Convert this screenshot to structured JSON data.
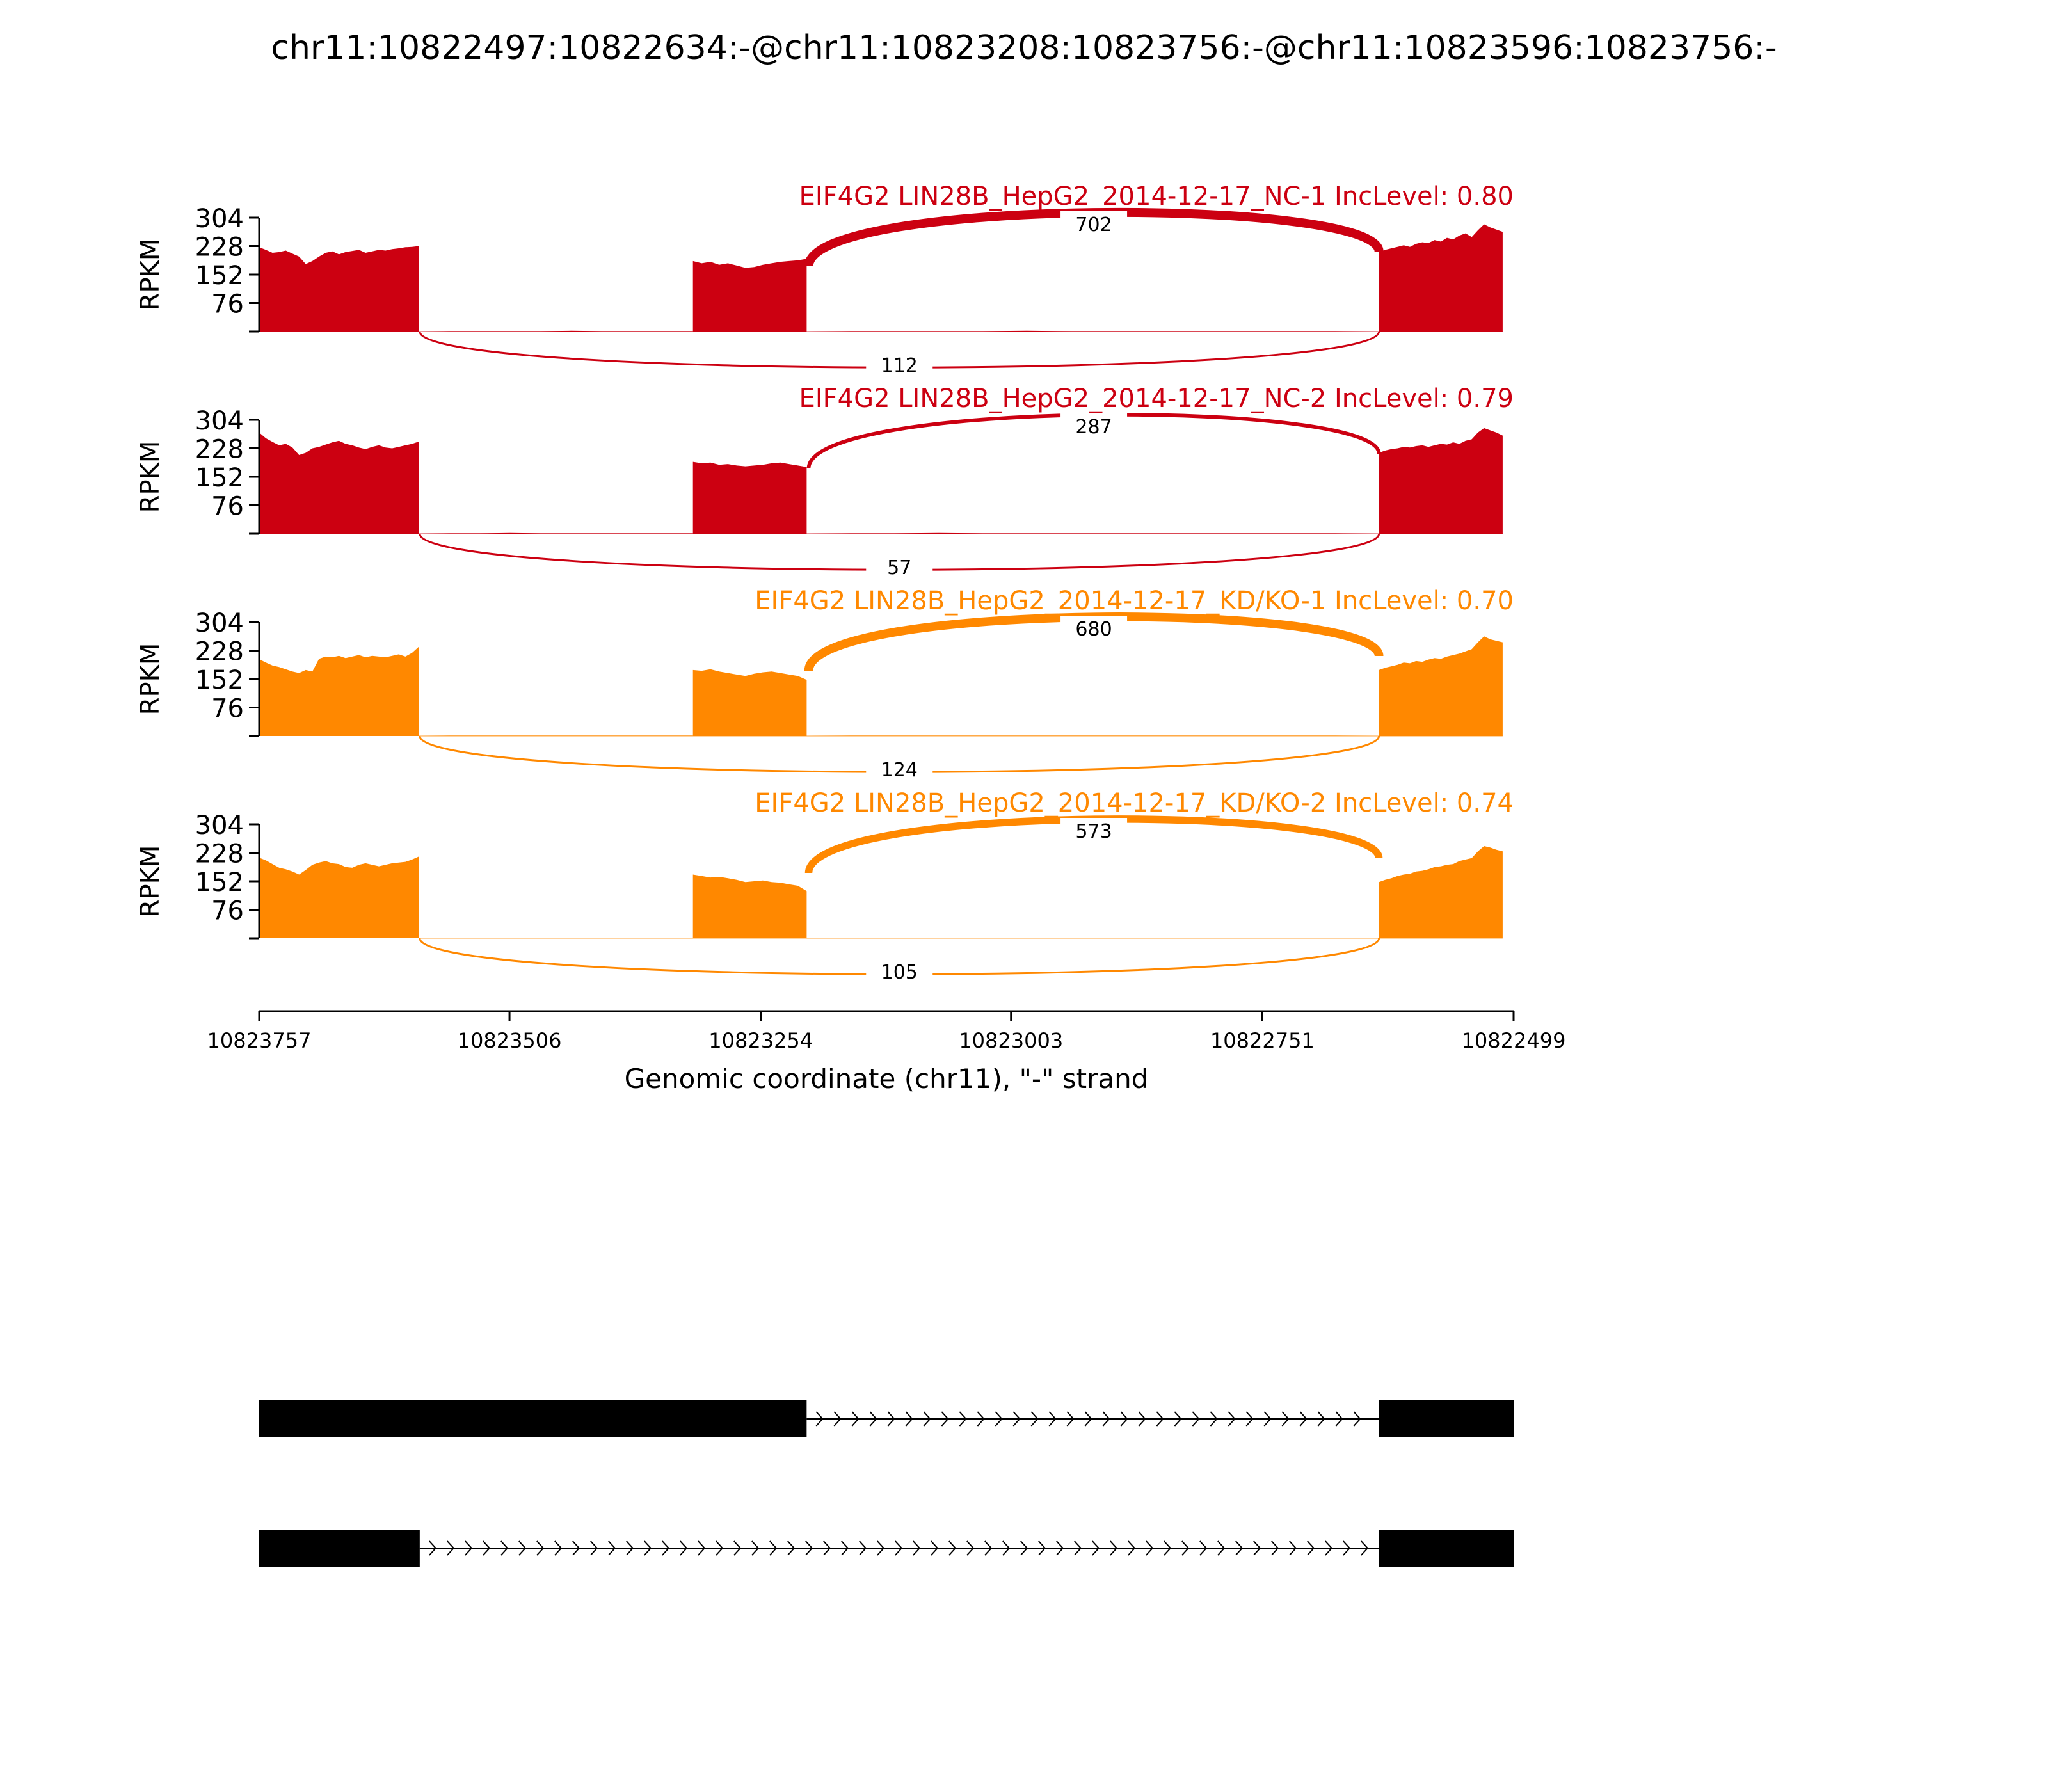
{
  "title": "chr11:10822497:10822634:-@chr11:10823208:10823756:-@chr11:10823596:10823756:-",
  "colors": {
    "nc": "#cc0011",
    "kd": "#ff8800",
    "axis": "#000000",
    "gene": "#000000"
  },
  "chart_data": {
    "type": "area",
    "subtype": "sashimi",
    "title": "chr11:10822497:10822634:-@chr11:10823208:10823756:-@chr11:10823596:10823756:-",
    "xlabel": "Genomic coordinate (chr11), \"-\" strand",
    "ylabel": "RPKM",
    "xlim": [
      10823757,
      10822499
    ],
    "x_reversed": true,
    "x_ticks": [
      "10823757",
      "10823506",
      "10823254",
      "10823003",
      "10822751",
      "10822499"
    ],
    "y_ticks": [
      "304",
      "228",
      "152",
      "76"
    ],
    "ylim": [
      0,
      304
    ],
    "tracks": [
      {
        "name": "EIF4G2 LIN28B_HepG2_2014-12-17_NC-1 IncLevel: 0.80",
        "color": "#cc0011",
        "junctions": [
          {
            "from": 10823206,
            "to": 10822634,
            "count": "702",
            "side": "above"
          },
          {
            "from": 10823596,
            "to": 10822634,
            "count": "112",
            "side": "below"
          }
        ],
        "coverage": [
          {
            "start": 10823757,
            "end": 10823597,
            "values": [
              225,
              218,
              210,
              212,
              216,
              208,
              200,
              180,
              188,
              200,
              210,
              214,
              206,
              212,
              215,
              218,
              210,
              214,
              218,
              216,
              220,
              222,
              225,
              226,
              228
            ]
          },
          {
            "start": 10823597,
            "end": 10823322,
            "values": [
              0,
              1,
              1,
              1,
              1,
              2,
              1,
              1,
              1,
              1
            ]
          },
          {
            "start": 10823322,
            "end": 10823208,
            "values": [
              188,
              182,
              186,
              178,
              182,
              176,
              170,
              172,
              178,
              182,
              186,
              188,
              190,
              194
            ]
          },
          {
            "start": 10823208,
            "end": 10822634,
            "values": [
              0,
              1,
              1,
              1,
              1,
              2,
              1,
              1,
              1,
              1,
              1,
              1,
              1,
              0
            ]
          },
          {
            "start": 10822634,
            "end": 10822510,
            "values": [
              212,
              218,
              222,
              226,
              230,
              226,
              234,
              238,
              236,
              244,
              240,
              250,
              246,
              256,
              262,
              252,
              270,
              286,
              278,
              272,
              266
            ]
          }
        ]
      },
      {
        "name": "EIF4G2 LIN28B_HepG2_2014-12-17_NC-2 IncLevel: 0.79",
        "color": "#cc0011",
        "junctions": [
          {
            "from": 10823206,
            "to": 10822634,
            "count": "287",
            "side": "above"
          },
          {
            "from": 10823596,
            "to": 10822634,
            "count": "57",
            "side": "below"
          }
        ],
        "coverage": [
          {
            "start": 10823757,
            "end": 10823597,
            "values": [
              270,
              255,
              245,
              236,
              240,
              230,
              210,
              216,
              228,
              232,
              238,
              244,
              248,
              240,
              236,
              230,
              226,
              232,
              236,
              230,
              228,
              232,
              236,
              240,
              246
            ]
          },
          {
            "start": 10823597,
            "end": 10823322,
            "values": [
              0,
              1,
              1,
              2,
              1,
              1,
              1,
              1,
              1,
              1
            ]
          },
          {
            "start": 10823322,
            "end": 10823208,
            "values": [
              192,
              188,
              190,
              184,
              186,
              182,
              180,
              182,
              184,
              188,
              190,
              186,
              182,
              178
            ]
          },
          {
            "start": 10823208,
            "end": 10822634,
            "values": [
              0,
              1,
              1,
              2,
              1,
              1,
              1,
              1,
              1,
              1,
              1,
              1,
              1,
              0
            ]
          },
          {
            "start": 10822634,
            "end": 10822510,
            "values": [
              216,
              222,
              226,
              228,
              232,
              230,
              234,
              236,
              232,
              236,
              240,
              238,
              244,
              240,
              248,
              252,
              270,
              282,
              276,
              270,
              262
            ]
          }
        ]
      },
      {
        "name": "EIF4G2 LIN28B_HepG2_2014-12-17_KD/KO-1 IncLevel: 0.70",
        "color": "#ff8800",
        "junctions": [
          {
            "from": 10823206,
            "to": 10822634,
            "count": "680",
            "side": "above"
          },
          {
            "from": 10823596,
            "to": 10822634,
            "count": "124",
            "side": "below"
          }
        ],
        "coverage": [
          {
            "start": 10823757,
            "end": 10823597,
            "values": [
              205,
              196,
              188,
              184,
              178,
              172,
              168,
              176,
              172,
              206,
              212,
              210,
              214,
              208,
              212,
              216,
              210,
              214,
              212,
              210,
              214,
              218,
              212,
              222,
              238
            ]
          },
          {
            "start": 10823597,
            "end": 10823322,
            "values": [
              0,
              1,
              1,
              1,
              1,
              1,
              1,
              1,
              1,
              1
            ]
          },
          {
            "start": 10823322,
            "end": 10823208,
            "values": [
              176,
              174,
              178,
              172,
              168,
              164,
              160,
              166,
              170,
              172,
              168,
              164,
              160,
              150
            ]
          },
          {
            "start": 10823208,
            "end": 10822634,
            "values": [
              0,
              1,
              1,
              1,
              1,
              1,
              1,
              1,
              1,
              1,
              1,
              1,
              1,
              0
            ]
          },
          {
            "start": 10822634,
            "end": 10822510,
            "values": [
              176,
              182,
              186,
              190,
              196,
              194,
              200,
              198,
              204,
              208,
              206,
              212,
              216,
              220,
              226,
              232,
              250,
              266,
              258,
              254,
              250
            ]
          }
        ]
      },
      {
        "name": "EIF4G2 LIN28B_HepG2_2014-12-17_KD/KO-2 IncLevel: 0.74",
        "color": "#ff8800",
        "junctions": [
          {
            "from": 10823206,
            "to": 10822634,
            "count": "573",
            "side": "above"
          },
          {
            "from": 10823596,
            "to": 10822634,
            "count": "105",
            "side": "below"
          }
        ],
        "coverage": [
          {
            "start": 10823757,
            "end": 10823597,
            "values": [
              215,
              208,
              198,
              188,
              184,
              178,
              170,
              182,
              196,
              202,
              206,
              200,
              198,
              190,
              188,
              196,
              200,
              196,
              192,
              196,
              200,
              202,
              204,
              210,
              218
            ]
          },
          {
            "start": 10823597,
            "end": 10823322,
            "values": [
              0,
              1,
              1,
              1,
              1,
              1,
              1,
              1,
              1,
              1
            ]
          },
          {
            "start": 10823322,
            "end": 10823208,
            "values": [
              170,
              166,
              162,
              164,
              160,
              156,
              150,
              152,
              154,
              150,
              148,
              144,
              140,
              126
            ]
          },
          {
            "start": 10823208,
            "end": 10822634,
            "values": [
              0,
              1,
              1,
              1,
              1,
              1,
              1,
              1,
              1,
              1,
              1,
              1,
              1,
              0
            ]
          },
          {
            "start": 10822634,
            "end": 10822510,
            "values": [
              150,
              156,
              160,
              166,
              170,
              172,
              178,
              180,
              184,
              190,
              192,
              196,
              198,
              206,
              210,
              214,
              232,
              246,
              242,
              236,
              232
            ]
          }
        ]
      }
    ],
    "gene_models": [
      {
        "exons": [
          {
            "start": 10823757,
            "end": 10823208
          },
          {
            "start": 10822634,
            "end": 10822499
          }
        ],
        "intron": {
          "start": 10823208,
          "end": 10822634
        }
      },
      {
        "exons": [
          {
            "start": 10823757,
            "end": 10823596
          },
          {
            "start": 10822634,
            "end": 10822499
          }
        ],
        "intron": {
          "start": 10823596,
          "end": 10822634
        }
      }
    ]
  }
}
